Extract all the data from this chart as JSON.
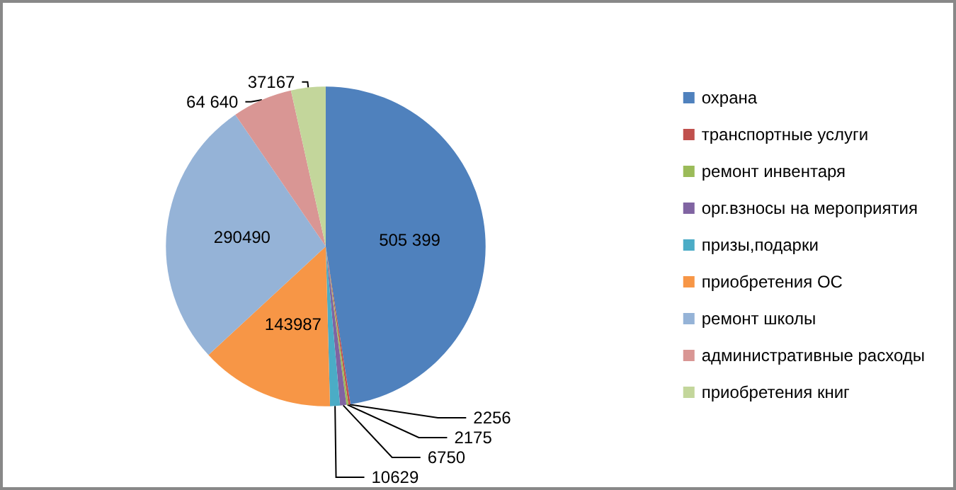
{
  "chart_data": {
    "type": "pie",
    "categories": [
      "охрана",
      "транспортные услуги",
      "ремонт инвентаря",
      "орг.взносы на мероприятия",
      "призы,подарки",
      "приобретения ОС",
      "ремонт школы",
      "административные расходы",
      "приобретения книг"
    ],
    "values": [
      505399,
      2256,
      2175,
      6750,
      10629,
      143987,
      290490,
      64640,
      37167
    ],
    "value_labels": [
      "505 399",
      "2256",
      "2175",
      "6750",
      "10629",
      "143987",
      "290490",
      "64 640",
      "37167"
    ],
    "colors": [
      "#4f81bd",
      "#c0504d",
      "#9bbb59",
      "#8064a2",
      "#4bacc6",
      "#f79646",
      "#95b3d7",
      "#d99694",
      "#c3d69b"
    ],
    "legend": "right"
  }
}
